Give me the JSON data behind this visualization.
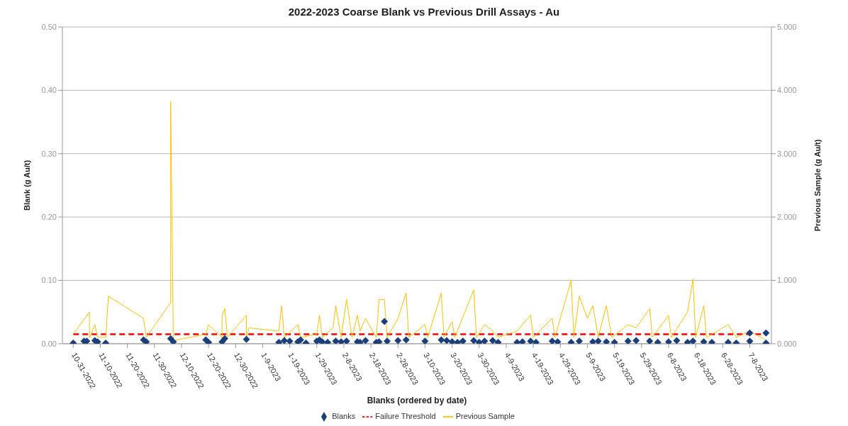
{
  "chart_data": {
    "type": "scatter",
    "title": "2022-2023 Coarse Blank vs Previous Drill Assays - Au",
    "xlabel": "Blanks (ordered by date)",
    "ylabel": "Blank (g Au/t)",
    "y2label": "Previous Sample (g Au/t)",
    "xlim": [
      "2022-10-27",
      "2023-07-16"
    ],
    "xticks": [
      {
        "value": "2022-10-31",
        "label": "10-31-2022"
      },
      {
        "value": "2022-11-10",
        "label": "11-10-2022"
      },
      {
        "value": "2022-11-20",
        "label": "11-20-2022"
      },
      {
        "value": "2022-11-30",
        "label": "11-30-2022"
      },
      {
        "value": "2022-12-10",
        "label": "12-10-2022"
      },
      {
        "value": "2022-12-20",
        "label": "12-20-2022"
      },
      {
        "value": "2022-12-30",
        "label": "12-30-2022"
      },
      {
        "value": "2023-01-09",
        "label": "1-9-2023"
      },
      {
        "value": "2023-01-19",
        "label": "1-19-2023"
      },
      {
        "value": "2023-01-29",
        "label": "1-29-2023"
      },
      {
        "value": "2023-02-08",
        "label": "2-8-2023"
      },
      {
        "value": "2023-02-18",
        "label": "2-18-2023"
      },
      {
        "value": "2023-02-28",
        "label": "2-28-2023"
      },
      {
        "value": "2023-03-10",
        "label": "3-10-2023"
      },
      {
        "value": "2023-03-20",
        "label": "3-20-2023"
      },
      {
        "value": "2023-03-30",
        "label": "3-30-2023"
      },
      {
        "value": "2023-04-09",
        "label": "4-9-2023"
      },
      {
        "value": "2023-04-19",
        "label": "4-19-2023"
      },
      {
        "value": "2023-04-29",
        "label": "4-29-2023"
      },
      {
        "value": "2023-05-09",
        "label": "5-9-2023"
      },
      {
        "value": "2023-05-19",
        "label": "5-19-2023"
      },
      {
        "value": "2023-05-29",
        "label": "5-29-2023"
      },
      {
        "value": "2023-06-08",
        "label": "6-8-2023"
      },
      {
        "value": "2023-06-18",
        "label": "6-18-2023"
      },
      {
        "value": "2023-06-28",
        "label": "6-28-2023"
      },
      {
        "value": "2023-07-08",
        "label": "7-8-2023"
      }
    ],
    "ylim": [
      0,
      0.5
    ],
    "yticks": [
      {
        "value": 0,
        "label": "0.00"
      },
      {
        "value": 0.1,
        "label": "0.10"
      },
      {
        "value": 0.2,
        "label": "0.20"
      },
      {
        "value": 0.3,
        "label": "0.30"
      },
      {
        "value": 0.4,
        "label": "0.40"
      },
      {
        "value": 0.5,
        "label": "0.50"
      }
    ],
    "y2lim": [
      0,
      5
    ],
    "y2ticks": [
      {
        "value": 0,
        "label": "0.000"
      },
      {
        "value": 1,
        "label": "1.000"
      },
      {
        "value": 2,
        "label": "2.000"
      },
      {
        "value": 3,
        "label": "3.000"
      },
      {
        "value": 4,
        "label": "4.000"
      },
      {
        "value": 5,
        "label": "5.000"
      }
    ],
    "grid": "y",
    "legend": "bottom",
    "marker": "diamond",
    "series": [
      {
        "name": "Blanks",
        "color": "#1b3f7a",
        "x": [
          "2022-10-31",
          "2022-11-04",
          "2022-11-05",
          "2022-11-08",
          "2022-11-09",
          "2022-11-12",
          "2022-11-26",
          "2022-11-27",
          "2022-12-06",
          "2022-12-07",
          "2022-12-19",
          "2022-12-20",
          "2022-12-25",
          "2022-12-26",
          "2023-01-03",
          "2023-01-15",
          "2023-01-17",
          "2023-01-19",
          "2023-01-22",
          "2023-01-23",
          "2023-01-25",
          "2023-01-29",
          "2023-01-30",
          "2023-01-31",
          "2023-02-02",
          "2023-02-05",
          "2023-02-07",
          "2023-02-09",
          "2023-02-13",
          "2023-02-14",
          "2023-02-16",
          "2023-02-20",
          "2023-02-21",
          "2023-02-23",
          "2023-02-24",
          "2023-02-28",
          "2023-03-03",
          "2023-03-10",
          "2023-03-16",
          "2023-03-18",
          "2023-03-20",
          "2023-03-22",
          "2023-03-24",
          "2023-03-28",
          "2023-03-30",
          "2023-04-01",
          "2023-04-04",
          "2023-04-06",
          "2023-04-13",
          "2023-04-15",
          "2023-04-18",
          "2023-04-20",
          "2023-04-26",
          "2023-04-28",
          "2023-05-03",
          "2023-05-06",
          "2023-05-11",
          "2023-05-13",
          "2023-05-16",
          "2023-05-19",
          "2023-05-24",
          "2023-05-27",
          "2023-06-01",
          "2023-06-04",
          "2023-06-08",
          "2023-06-11",
          "2023-06-15",
          "2023-06-17",
          "2023-06-21",
          "2023-06-24",
          "2023-06-30",
          "2023-07-03",
          "2023-07-08",
          "2023-07-08",
          "2023-07-14",
          "2023-07-14"
        ],
        "values": [
          0.001,
          0.004,
          0.004,
          0.005,
          0.003,
          0.001,
          0.006,
          0.003,
          0.008,
          0.003,
          0.006,
          0.002,
          0.003,
          0.008,
          0.007,
          0.002,
          0.005,
          0.004,
          0.003,
          0.006,
          0.001,
          0.004,
          0.006,
          0.003,
          0.002,
          0.004,
          0.003,
          0.004,
          0.003,
          0.002,
          0.005,
          0.002,
          0.003,
          0.035,
          0.004,
          0.005,
          0.006,
          0.004,
          0.006,
          0.005,
          0.003,
          0.002,
          0.004,
          0.005,
          0.002,
          0.004,
          0.005,
          0.002,
          0.002,
          0.003,
          0.004,
          0.002,
          0.004,
          0.003,
          0.002,
          0.004,
          0.003,
          0.004,
          0.003,
          0.002,
          0.004,
          0.005,
          0.004,
          0.002,
          0.003,
          0.005,
          0.002,
          0.004,
          0.003,
          0.002,
          0.002,
          0.001,
          0.004,
          0.017,
          0.017,
          0.001
        ]
      },
      {
        "name": "Failure Threshold",
        "type": "line",
        "color": "#ff0000",
        "line_style": "dashed",
        "marker": "none",
        "x": [
          "2022-10-31",
          "2023-07-14"
        ],
        "values": [
          0.015,
          0.015
        ]
      },
      {
        "name": "Previous Sample",
        "type": "line",
        "axis": "y2",
        "color": "#ffc000",
        "marker": "none",
        "x": [
          "2022-10-31",
          "2022-11-06",
          "2022-11-06",
          "2022-11-08",
          "2022-11-09",
          "2022-11-12",
          "2022-11-13",
          "2022-11-26",
          "2022-11-27",
          "2022-12-06",
          "2022-12-06",
          "2022-12-07",
          "2022-12-19",
          "2022-12-20",
          "2022-12-25",
          "2022-12-25",
          "2022-12-26",
          "2022-12-27",
          "2023-01-03",
          "2023-01-03",
          "2023-01-04",
          "2023-01-15",
          "2023-01-16",
          "2023-01-17",
          "2023-01-22",
          "2023-01-23",
          "2023-01-29",
          "2023-01-30",
          "2023-01-31",
          "2023-02-04",
          "2023-02-05",
          "2023-02-07",
          "2023-02-09",
          "2023-02-11",
          "2023-02-13",
          "2023-02-14",
          "2023-02-16",
          "2023-02-20",
          "2023-02-21",
          "2023-02-23",
          "2023-02-24",
          "2023-02-28",
          "2023-03-03",
          "2023-03-04",
          "2023-03-10",
          "2023-03-11",
          "2023-03-16",
          "2023-03-17",
          "2023-03-20",
          "2023-03-21",
          "2023-03-28",
          "2023-03-29",
          "2023-04-01",
          "2023-04-04",
          "2023-04-06",
          "2023-04-13",
          "2023-04-18",
          "2023-04-19",
          "2023-04-26",
          "2023-04-27",
          "2023-05-03",
          "2023-05-04",
          "2023-05-06",
          "2023-05-09",
          "2023-05-11",
          "2023-05-13",
          "2023-05-16",
          "2023-05-18",
          "2023-05-24",
          "2023-05-27",
          "2023-06-01",
          "2023-06-02",
          "2023-06-08",
          "2023-06-09",
          "2023-06-15",
          "2023-06-17",
          "2023-06-18",
          "2023-06-21",
          "2023-06-22",
          "2023-06-30",
          "2023-07-03",
          "2023-07-08",
          "2023-07-14"
        ],
        "values": [
          0.15,
          0.5,
          0.1,
          0.3,
          0.1,
          0.1,
          0.75,
          0.4,
          0.1,
          0.65,
          3.82,
          0.05,
          0.15,
          0.3,
          0.1,
          0.45,
          0.55,
          0.1,
          0.45,
          0.1,
          0.25,
          0.2,
          0.6,
          0.1,
          0.3,
          0.1,
          0.15,
          0.45,
          0.1,
          0.25,
          0.6,
          0.1,
          0.7,
          0.1,
          0.45,
          0.2,
          0.4,
          0.1,
          0.7,
          0.7,
          0.1,
          0.4,
          0.8,
          0.1,
          0.3,
          0.1,
          0.8,
          0.1,
          0.35,
          0.1,
          0.85,
          0.1,
          0.3,
          0.2,
          0.1,
          0.2,
          0.45,
          0.1,
          0.4,
          0.1,
          1.0,
          0.1,
          0.75,
          0.4,
          0.6,
          0.1,
          0.6,
          0.1,
          0.3,
          0.25,
          0.55,
          0.1,
          0.45,
          0.1,
          0.5,
          1.02,
          0.1,
          0.6,
          0.1,
          0.3,
          0.1,
          0.2,
          0.05
        ]
      }
    ]
  }
}
